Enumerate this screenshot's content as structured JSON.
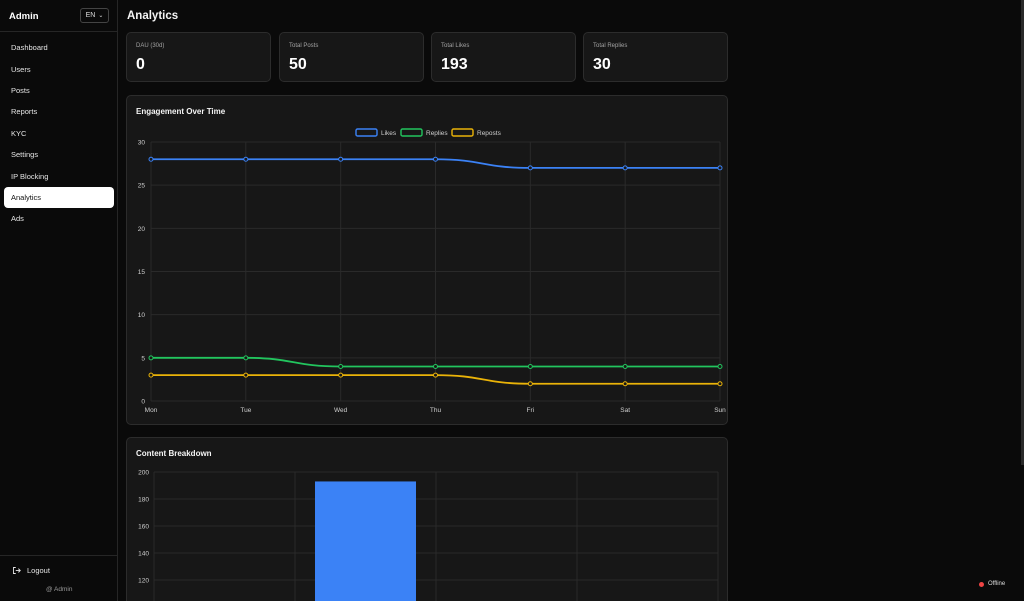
{
  "sidebar": {
    "brand": "Admin",
    "language": "EN",
    "items": [
      {
        "label": "Dashboard",
        "active": false
      },
      {
        "label": "Users",
        "active": false
      },
      {
        "label": "Posts",
        "active": false
      },
      {
        "label": "Reports",
        "active": false
      },
      {
        "label": "KYC",
        "active": false
      },
      {
        "label": "Settings",
        "active": false
      },
      {
        "label": "IP Blocking",
        "active": false
      },
      {
        "label": "Analytics",
        "active": true
      },
      {
        "label": "Ads",
        "active": false
      }
    ],
    "logout_label": "Logout",
    "user_label": "@ Admin"
  },
  "page": {
    "title": "Analytics"
  },
  "stats": [
    {
      "label": "DAU (30d)",
      "value": "0"
    },
    {
      "label": "Total Posts",
      "value": "50"
    },
    {
      "label": "Total Likes",
      "value": "193"
    },
    {
      "label": "Total Replies",
      "value": "30"
    }
  ],
  "charts": {
    "engagement_title": "Engagement Over Time",
    "breakdown_title": "Content Breakdown"
  },
  "status": {
    "label": "Offline",
    "color": "#ef4444"
  },
  "colors": {
    "likes": "#3b82f6",
    "replies": "#22c55e",
    "reposts": "#eab308",
    "grid": "#2a2a2a",
    "tick": "#cfcfcf"
  },
  "chart_data": [
    {
      "type": "line",
      "title": "Engagement Over Time",
      "x": [
        "Mon",
        "Tue",
        "Wed",
        "Thu",
        "Fri",
        "Sat",
        "Sun"
      ],
      "series": [
        {
          "name": "Likes",
          "values": [
            28,
            28,
            28,
            28,
            27,
            27,
            27
          ]
        },
        {
          "name": "Replies",
          "values": [
            5,
            5,
            4,
            4,
            4,
            4,
            4
          ]
        },
        {
          "name": "Reposts",
          "values": [
            3,
            3,
            3,
            3,
            2,
            2,
            2
          ]
        }
      ],
      "ylim": [
        0,
        30
      ],
      "y_ticks": [
        0,
        5,
        10,
        15,
        20,
        25,
        30
      ],
      "grid": true,
      "legend": "top-center"
    },
    {
      "type": "bar",
      "title": "Content Breakdown",
      "categories": [
        "",
        "",
        "",
        ""
      ],
      "values": [
        null,
        193,
        null,
        null
      ],
      "y_ticks_visible": [
        120,
        140,
        160,
        180,
        200
      ],
      "grid": true
    }
  ]
}
